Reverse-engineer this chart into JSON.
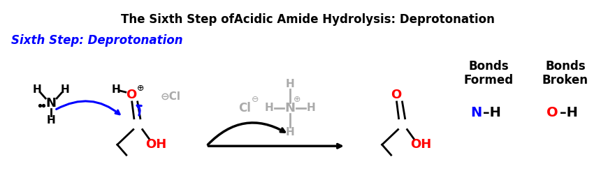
{
  "title": "The Sixth Step ofAcidic Amide Hydrolysis: Deprotonation",
  "subtitle": "Sixth Step: Deprotonation",
  "title_fontsize": 12,
  "subtitle_fontsize": 12,
  "bg_color": "#ffffff",
  "title_color": "#000000",
  "subtitle_color": "#0000ff",
  "bonds_formed_label": "Bonds\nFormed",
  "bonds_broken_label": "Bonds\nBroken",
  "blue": "#0000ff",
  "red": "#ff0000",
  "black": "#000000",
  "gray": "#aaaaaa"
}
